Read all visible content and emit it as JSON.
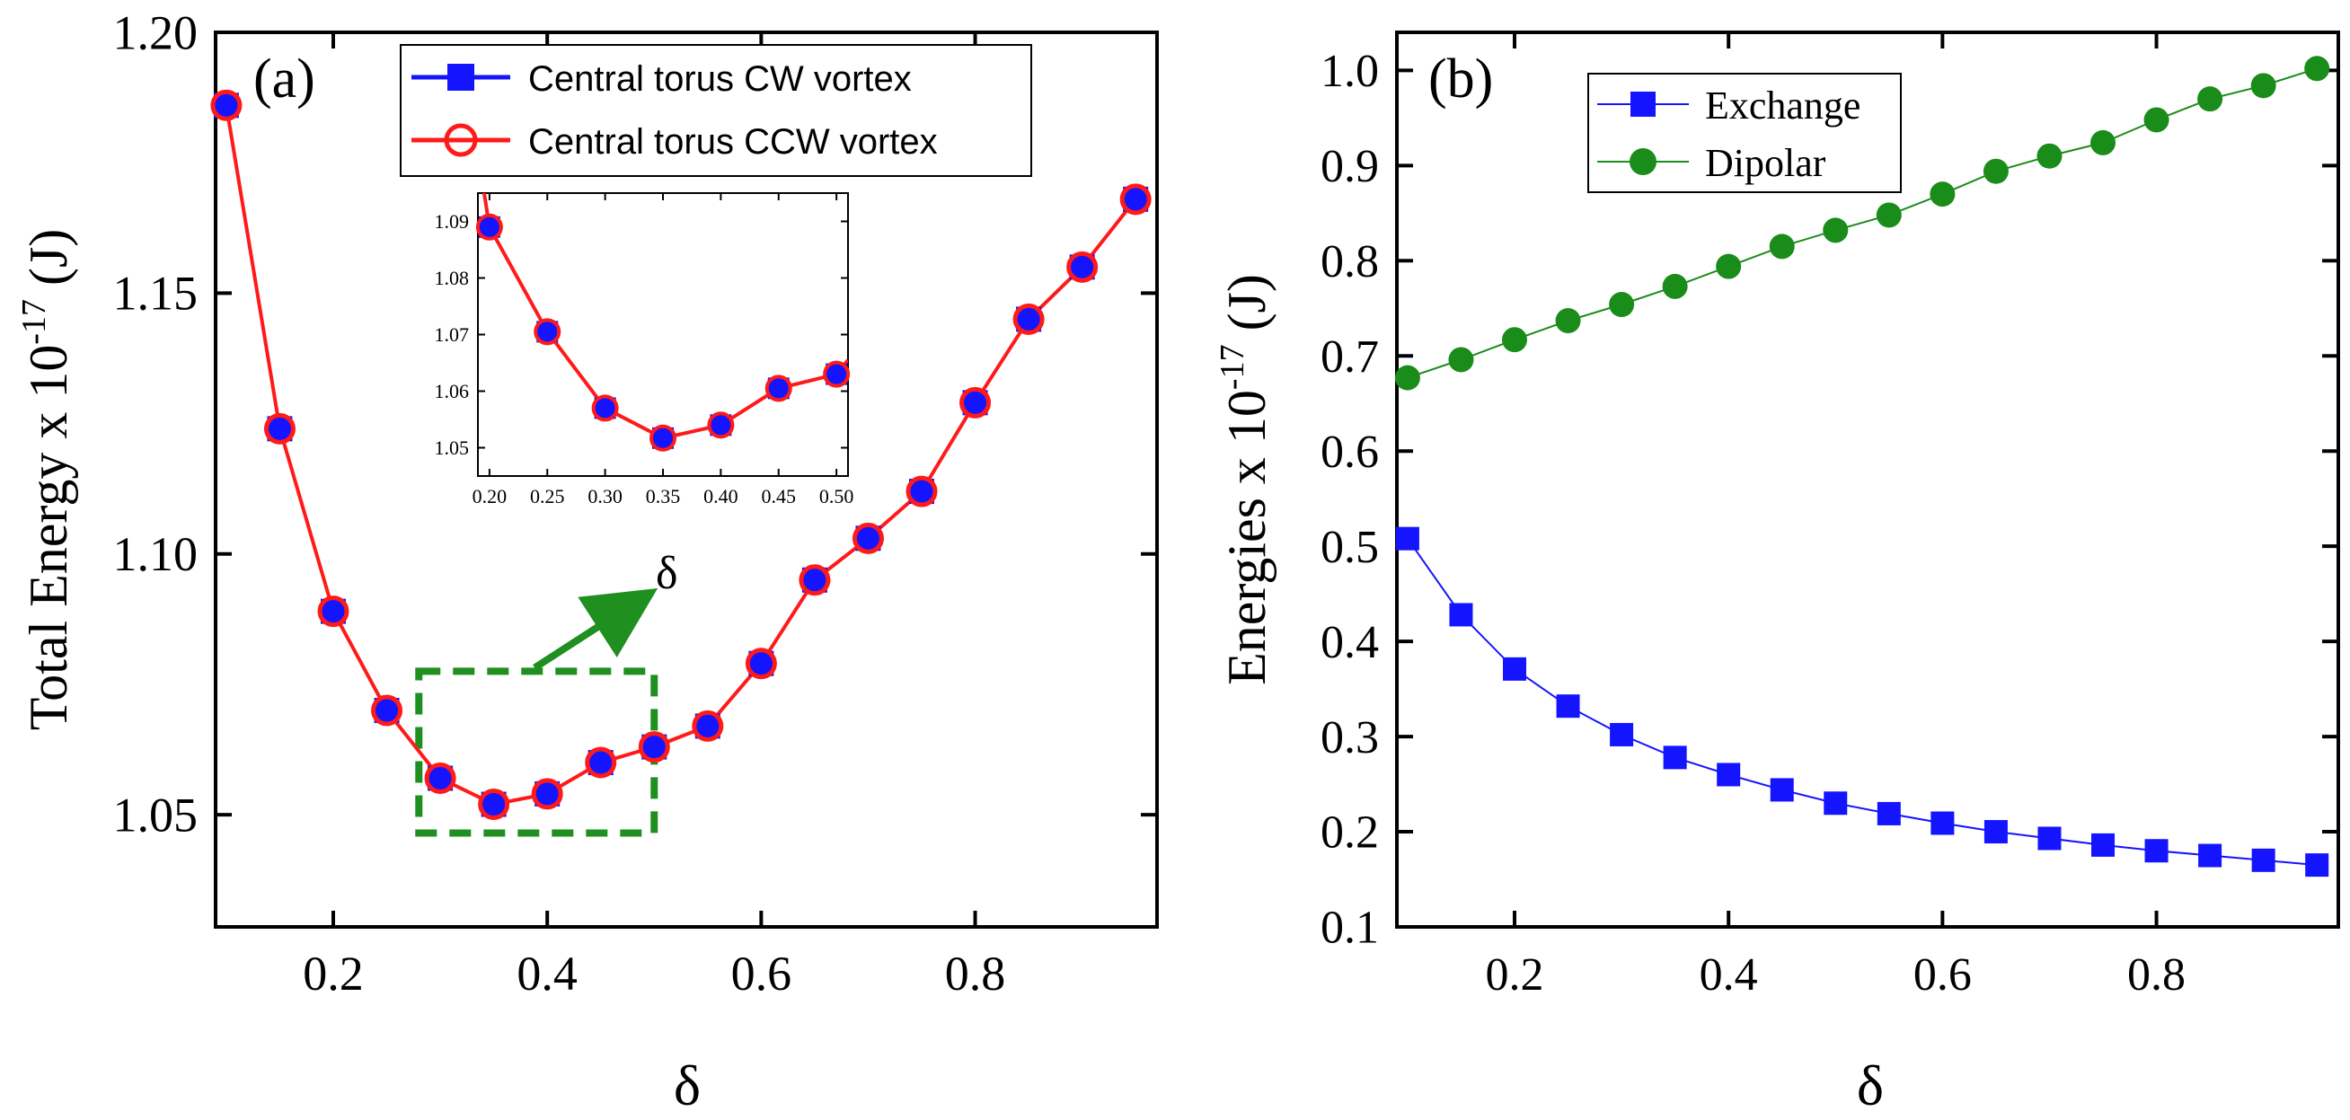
{
  "colors": {
    "cw": "#1414ff",
    "ccw": "#ff1a1a",
    "exchange": "#1414ff",
    "dipolar": "#1a8c1a",
    "callout": "#1f8f1f",
    "axis": "#000000"
  },
  "chart_data": [
    {
      "type": "line",
      "panel_label": "(a)",
      "xlabel": "δ",
      "ylabel_main": "Total Energy x 10",
      "ylabel_exp": "-17",
      "ylabel_unit": " (J)",
      "xlim": [
        0.09,
        0.97
      ],
      "ylim": [
        1.0285,
        1.2
      ],
      "xticks": [
        0.2,
        0.4,
        0.6,
        0.8
      ],
      "xtick_labels": [
        "0.2",
        "0.4",
        "0.6",
        "0.8"
      ],
      "yticks": [
        1.05,
        1.1,
        1.15,
        1.2
      ],
      "ytick_labels": [
        "1.05",
        "1.10",
        "1.15",
        "1.20"
      ],
      "x": [
        0.1,
        0.15,
        0.2,
        0.25,
        0.3,
        0.35,
        0.4,
        0.45,
        0.5,
        0.55,
        0.6,
        0.65,
        0.7,
        0.75,
        0.8,
        0.85,
        0.9,
        0.95
      ],
      "series": [
        {
          "name": "Central torus CW vortex",
          "marker": "square",
          "values": [
            1.186,
            1.124,
            1.089,
            1.07,
            1.057,
            1.052,
            1.054,
            1.06,
            1.063,
            1.067,
            1.079,
            1.095,
            1.103,
            1.112,
            1.129,
            1.145,
            1.155,
            1.168
          ]
        },
        {
          "name": "Central torus CCW vortex",
          "marker": "open-circle",
          "values": [
            1.186,
            1.124,
            1.089,
            1.07,
            1.057,
            1.052,
            1.054,
            1.06,
            1.063,
            1.067,
            1.079,
            1.095,
            1.103,
            1.112,
            1.129,
            1.145,
            1.155,
            1.168
          ]
        }
      ],
      "highlight_box": {
        "x_range": [
          0.28,
          0.5
        ],
        "y_range": [
          1.0465,
          1.0775
        ]
      },
      "callout_label": "δ",
      "inset": {
        "xlim": [
          0.19,
          0.51
        ],
        "ylim": [
          1.045,
          1.095
        ],
        "xticks": [
          0.2,
          0.25,
          0.3,
          0.35,
          0.4,
          0.45,
          0.5
        ],
        "xtick_labels": [
          "0.20",
          "0.25",
          "0.30",
          "0.35",
          "0.40",
          "0.45",
          "0.50"
        ],
        "yticks": [
          1.05,
          1.06,
          1.07,
          1.08,
          1.09
        ],
        "ytick_labels": [
          "1.05",
          "1.06",
          "1.07",
          "1.08",
          "1.09"
        ],
        "x": [
          0.2,
          0.25,
          0.3,
          0.35,
          0.4,
          0.45,
          0.5
        ],
        "values": [
          1.089,
          1.0705,
          1.057,
          1.0517,
          1.054,
          1.0605,
          1.063
        ]
      }
    },
    {
      "type": "line",
      "panel_label": "(b)",
      "xlabel": "δ",
      "ylabel_main": "Energies x 10",
      "ylabel_exp": "-17",
      "ylabel_unit": " (J)",
      "xlim": [
        0.09,
        0.97
      ],
      "ylim": [
        0.1,
        1.04
      ],
      "xticks": [
        0.2,
        0.4,
        0.6,
        0.8
      ],
      "xtick_labels": [
        "0.2",
        "0.4",
        "0.6",
        "0.8"
      ],
      "yticks": [
        0.1,
        0.2,
        0.3,
        0.4,
        0.5,
        0.6,
        0.7,
        0.8,
        0.9,
        1.0
      ],
      "ytick_labels": [
        "0.1",
        "0.2",
        "0.3",
        "0.4",
        "0.5",
        "0.6",
        "0.7",
        "0.8",
        "0.9",
        "1.0"
      ],
      "x": [
        0.1,
        0.15,
        0.2,
        0.25,
        0.3,
        0.35,
        0.4,
        0.45,
        0.5,
        0.55,
        0.6,
        0.65,
        0.7,
        0.75,
        0.8,
        0.85,
        0.9,
        0.95
      ],
      "series": [
        {
          "name": "Exchange",
          "marker": "square",
          "values": [
            0.508,
            0.428,
            0.371,
            0.332,
            0.302,
            0.278,
            0.26,
            0.244,
            0.23,
            0.219,
            0.209,
            0.2,
            0.193,
            0.186,
            0.18,
            0.175,
            0.17,
            0.165
          ]
        },
        {
          "name": "Dipolar",
          "marker": "circle",
          "values": [
            0.677,
            0.696,
            0.717,
            0.737,
            0.754,
            0.773,
            0.794,
            0.815,
            0.832,
            0.848,
            0.87,
            0.894,
            0.91,
            0.924,
            0.948,
            0.97,
            0.984,
            1.002
          ]
        }
      ]
    }
  ]
}
